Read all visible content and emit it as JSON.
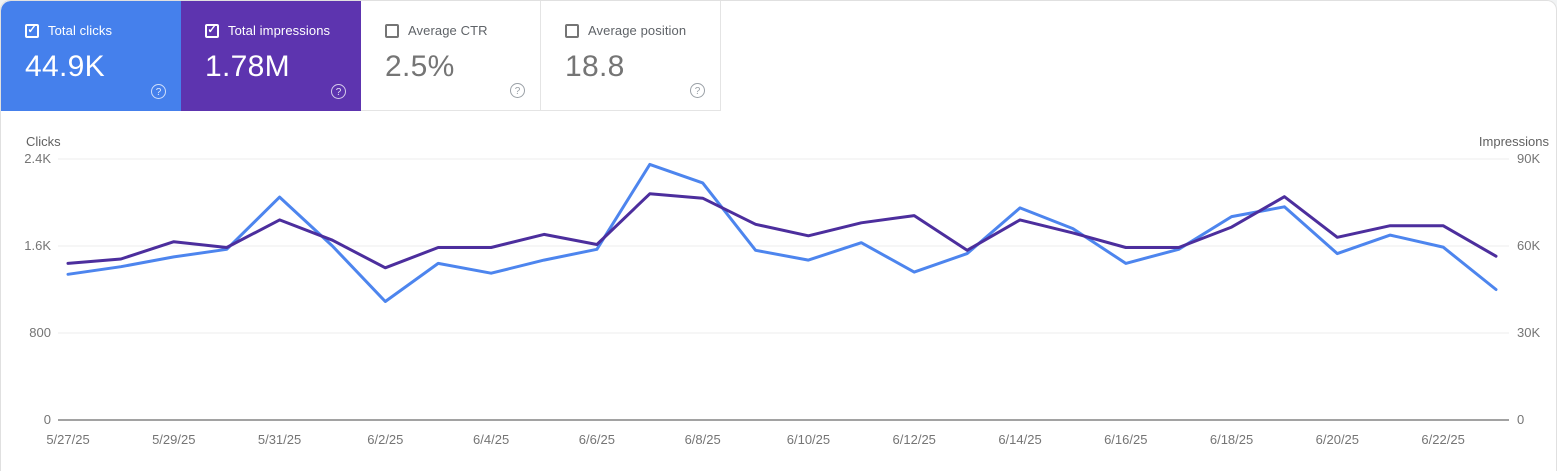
{
  "icons": {
    "check": "✓",
    "help": "?"
  },
  "cards": [
    {
      "label": "Total clicks",
      "value": "44.9K",
      "checked": true,
      "bg": "#4580ec"
    },
    {
      "label": "Total impressions",
      "value": "1.78M",
      "checked": true,
      "bg": "#5d34af"
    },
    {
      "label": "Average CTR",
      "value": "2.5%",
      "checked": false,
      "bg": "#ffffff"
    },
    {
      "label": "Average position",
      "value": "18.8",
      "checked": false,
      "bg": "#ffffff"
    }
  ],
  "chart_data": {
    "type": "line",
    "x": [
      "5/27/25",
      "5/28/25",
      "5/29/25",
      "5/30/25",
      "5/31/25",
      "6/1/25",
      "6/2/25",
      "6/3/25",
      "6/4/25",
      "6/5/25",
      "6/6/25",
      "6/7/25",
      "6/8/25",
      "6/9/25",
      "6/10/25",
      "6/11/25",
      "6/12/25",
      "6/13/25",
      "6/14/25",
      "6/15/25",
      "6/16/25",
      "6/17/25",
      "6/18/25",
      "6/19/25",
      "6/20/25",
      "6/21/25",
      "6/22/25",
      "6/23/25"
    ],
    "x_tick_every": 2,
    "series": [
      {
        "name": "Total clicks",
        "axis": "left",
        "color": "#4d85ee",
        "values": [
          1340,
          1410,
          1500,
          1570,
          2050,
          1600,
          1090,
          1440,
          1350,
          1470,
          1570,
          2350,
          2180,
          1560,
          1470,
          1630,
          1360,
          1530,
          1950,
          1760,
          1440,
          1570,
          1870,
          1960,
          1530,
          1700,
          1590,
          1200
        ]
      },
      {
        "name": "Total impressions",
        "axis": "right",
        "color": "#4c2e9d",
        "values": [
          54000,
          55500,
          61500,
          59500,
          69000,
          62000,
          52500,
          59500,
          59500,
          64000,
          60500,
          78000,
          76500,
          67500,
          63500,
          68000,
          70500,
          58500,
          69000,
          64500,
          59500,
          59500,
          66500,
          77000,
          63000,
          67000,
          67000,
          56500
        ]
      }
    ],
    "y_left": {
      "title": "Clicks",
      "max": 2400,
      "ticks": [
        {
          "label": "2.4K",
          "value": 2400
        },
        {
          "label": "1.6K",
          "value": 1600
        },
        {
          "label": "800",
          "value": 800
        },
        {
          "label": "0",
          "value": 0
        }
      ]
    },
    "y_right": {
      "title": "Impressions",
      "max": 90000,
      "ticks": [
        {
          "label": "90K",
          "value": 90000
        },
        {
          "label": "60K",
          "value": 60000
        },
        {
          "label": "30K",
          "value": 30000
        },
        {
          "label": "0",
          "value": 0
        }
      ]
    },
    "grid": "horizontal",
    "colors": {
      "grid": "#ececec",
      "baseline": "#a2a2a2",
      "tick_text": "#757575"
    }
  }
}
